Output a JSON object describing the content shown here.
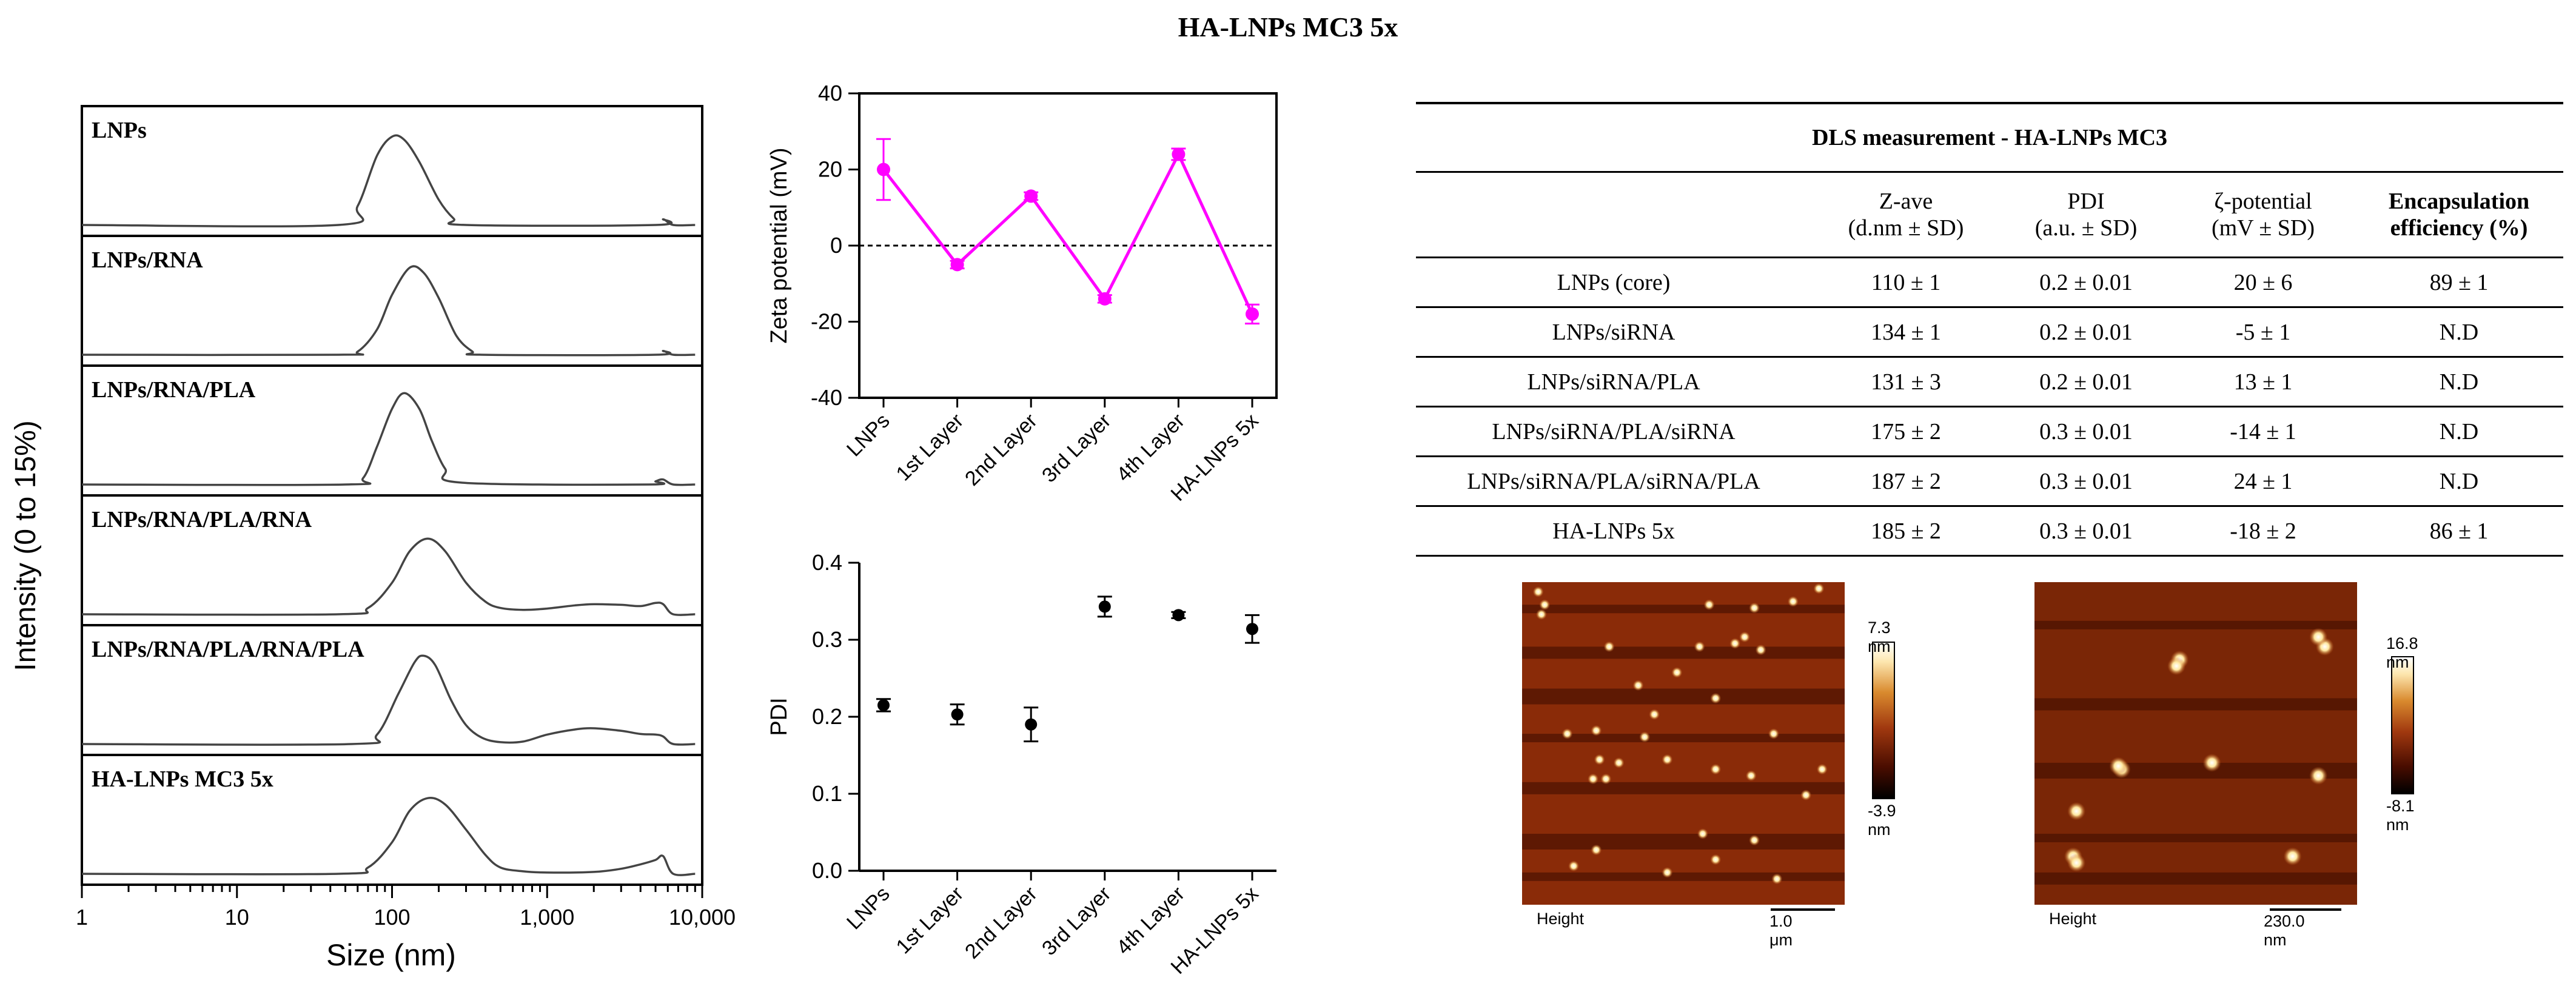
{
  "title": "HA-LNPs MC3 5x",
  "colors": {
    "zeta": "#ff00ff",
    "pdi": "#000000",
    "line": "#444444"
  },
  "chart_data": [
    {
      "type": "line",
      "name": "size-distribution",
      "xlabel": "Size (nm)",
      "ylabel": "Intensity (0 to 15%)",
      "xscale": "log",
      "xlim": [
        1,
        10000
      ],
      "xticks": [
        "1",
        "10",
        "100",
        "1,000",
        "10,000"
      ],
      "panels": [
        {
          "label": "LNPs",
          "x": [
            45,
            60,
            80,
            100,
            120,
            150,
            200,
            250,
            300,
            5000,
            5600,
            6500
          ],
          "y": [
            0,
            3,
            11,
            14,
            13.5,
            10,
            4,
            1,
            0,
            0,
            0.9,
            0
          ]
        },
        {
          "label": "LNPs/RNA",
          "x": [
            45,
            60,
            80,
            100,
            130,
            160,
            200,
            260,
            330,
            380,
            5000,
            5600,
            6500
          ],
          "y": [
            0,
            0.5,
            4,
            9.5,
            13.8,
            13,
            9,
            3,
            0.5,
            0,
            0,
            0.6,
            0
          ]
        },
        {
          "label": "LNPs/RNA/PLA",
          "x": [
            50,
            65,
            80,
            100,
            120,
            150,
            180,
            220,
            280,
            4500,
            5000,
            5600,
            6500
          ],
          "y": [
            0,
            1,
            6,
            12,
            14.5,
            12,
            7,
            2.5,
            0.3,
            0,
            0.5,
            0.8,
            0
          ]
        },
        {
          "label": "LNPs/RNA/PLA/RNA",
          "x": [
            45,
            70,
            100,
            130,
            170,
            220,
            300,
            400,
            500,
            700,
            1000,
            1500,
            2000,
            3000,
            4000,
            5000,
            5600,
            6500
          ],
          "y": [
            0,
            1,
            5,
            10,
            12,
            10,
            5,
            2,
            1,
            0.7,
            0.9,
            1.4,
            1.6,
            1.5,
            1.3,
            1.8,
            1.6,
            0
          ]
        },
        {
          "label": "LNPs/RNA/PLA/RNA/PLA",
          "x": [
            55,
            80,
            110,
            140,
            160,
            190,
            240,
            300,
            380,
            500,
            700,
            1000,
            1500,
            2000,
            3000,
            4000,
            5000,
            5600,
            6500
          ],
          "y": [
            0,
            1.5,
            8,
            13,
            14,
            12.5,
            7,
            3,
            1,
            0.3,
            0.4,
            1.5,
            2.3,
            2.5,
            2.1,
            1.6,
            1.5,
            1.2,
            0
          ]
        },
        {
          "label": "HA-LNPs MC3 5x",
          "x": [
            45,
            70,
            100,
            130,
            170,
            220,
            300,
            400,
            500,
            700,
            1000,
            2000,
            3000,
            4000,
            5000,
            5600,
            6500
          ],
          "y": [
            0,
            1,
            5,
            10,
            12,
            11,
            7,
            3,
            1,
            0.4,
            0.2,
            0.3,
            0.8,
            1.5,
            2.2,
            2.8,
            0
          ]
        }
      ]
    },
    {
      "type": "line",
      "name": "zeta-potential",
      "ylabel": "Zeta potential (mV)",
      "ylim": [
        -40,
        40
      ],
      "yticks": [
        -40,
        -20,
        0,
        20,
        40
      ],
      "reference_line": 0,
      "categories": [
        "LNPs",
        "1st Layer",
        "2nd Layer",
        "3rd Layer",
        "4th Layer",
        "HA-LNPs 5x"
      ],
      "series": [
        {
          "values": [
            20,
            -5,
            13,
            -14,
            24,
            -18
          ],
          "errors": [
            8,
            1,
            1,
            1,
            1.5,
            2.5
          ]
        }
      ]
    },
    {
      "type": "scatter",
      "name": "pdi",
      "ylabel": "PDI",
      "ylim": [
        0,
        0.4
      ],
      "yticks": [
        "0.0",
        "0.1",
        "0.2",
        "0.3",
        "0.4"
      ],
      "categories": [
        "LNPs",
        "1st Layer",
        "2nd Layer",
        "3rd Layer",
        "4th Layer",
        "HA-LNPs 5x"
      ],
      "series": [
        {
          "values": [
            0.215,
            0.203,
            0.19,
            0.343,
            0.332,
            0.314
          ],
          "errors": [
            0.008,
            0.013,
            0.022,
            0.013,
            0.004,
            0.018
          ]
        }
      ]
    },
    {
      "type": "table",
      "name": "dls-measurement",
      "title": "DLS measurement - HA-LNPs MC3",
      "columns": [
        {
          "line1": "",
          "line2": ""
        },
        {
          "line1": "Z-ave",
          "line2": "(d.nm ± SD)"
        },
        {
          "line1": "PDI",
          "line2": "(a.u. ± SD)"
        },
        {
          "line1": "ζ-potential",
          "line2": "(mV ± SD)"
        },
        {
          "line1": "Encapsulation",
          "line2": "efficiency (%)"
        }
      ],
      "rows": [
        [
          "LNPs (core)",
          "110 ± 1",
          "0.2 ± 0.01",
          "20 ± 6",
          "89 ± 1"
        ],
        [
          "LNPs/siRNA",
          "134 ± 1",
          "0.2 ± 0.01",
          "-5 ± 1",
          "N.D"
        ],
        [
          "LNPs/siRNA/PLA",
          "131 ± 3",
          "0.2 ± 0.01",
          "13 ± 1",
          "N.D"
        ],
        [
          "LNPs/siRNA/PLA/siRNA",
          "175 ± 2",
          "0.3 ± 0.01",
          "-14 ± 1",
          "N.D"
        ],
        [
          "LNPs/siRNA/PLA/siRNA/PLA",
          "187 ± 2",
          "0.3 ± 0.01",
          "24 ± 1",
          "N.D"
        ],
        [
          "HA-LNPs 5x",
          "185 ± 2",
          "0.3 ± 0.01",
          "-18 ± 2",
          "86 ± 1"
        ]
      ]
    }
  ],
  "afm": [
    {
      "mode_label": "Height",
      "scale_label": "1.0 μm",
      "scale_max": "7.3 nm",
      "scale_min": "-3.9 nm",
      "particles": [
        [
          0.05,
          0.03
        ],
        [
          0.06,
          0.1
        ],
        [
          0.27,
          0.2
        ],
        [
          0.07,
          0.07
        ],
        [
          0.58,
          0.07
        ],
        [
          0.72,
          0.08
        ],
        [
          0.74,
          0.21
        ],
        [
          0.69,
          0.17
        ],
        [
          0.66,
          0.19
        ],
        [
          0.55,
          0.2
        ],
        [
          0.48,
          0.28
        ],
        [
          0.6,
          0.36
        ],
        [
          0.36,
          0.32
        ],
        [
          0.41,
          0.41
        ],
        [
          0.38,
          0.48
        ],
        [
          0.14,
          0.47
        ],
        [
          0.23,
          0.46
        ],
        [
          0.3,
          0.56
        ],
        [
          0.26,
          0.61
        ],
        [
          0.22,
          0.61
        ],
        [
          0.24,
          0.55
        ],
        [
          0.45,
          0.55
        ],
        [
          0.6,
          0.58
        ],
        [
          0.88,
          0.66
        ],
        [
          0.93,
          0.58
        ],
        [
          0.56,
          0.78
        ],
        [
          0.72,
          0.8
        ],
        [
          0.6,
          0.86
        ],
        [
          0.79,
          0.92
        ],
        [
          0.16,
          0.88
        ],
        [
          0.23,
          0.83
        ],
        [
          0.45,
          0.9
        ],
        [
          0.78,
          0.47
        ],
        [
          0.71,
          0.6
        ],
        [
          0.92,
          0.02
        ],
        [
          0.84,
          0.06
        ]
      ]
    },
    {
      "mode_label": "Height",
      "scale_label": "230.0 nm",
      "scale_max": "16.8 nm",
      "scale_min": "-8.1 nm",
      "particles": [
        [
          0.45,
          0.24
        ],
        [
          0.44,
          0.26
        ],
        [
          0.27,
          0.58
        ],
        [
          0.26,
          0.57
        ],
        [
          0.55,
          0.56
        ],
        [
          0.9,
          0.2
        ],
        [
          0.88,
          0.17
        ],
        [
          0.88,
          0.6
        ],
        [
          0.13,
          0.71
        ],
        [
          0.8,
          0.85
        ],
        [
          0.12,
          0.85
        ],
        [
          0.13,
          0.87
        ]
      ]
    }
  ]
}
